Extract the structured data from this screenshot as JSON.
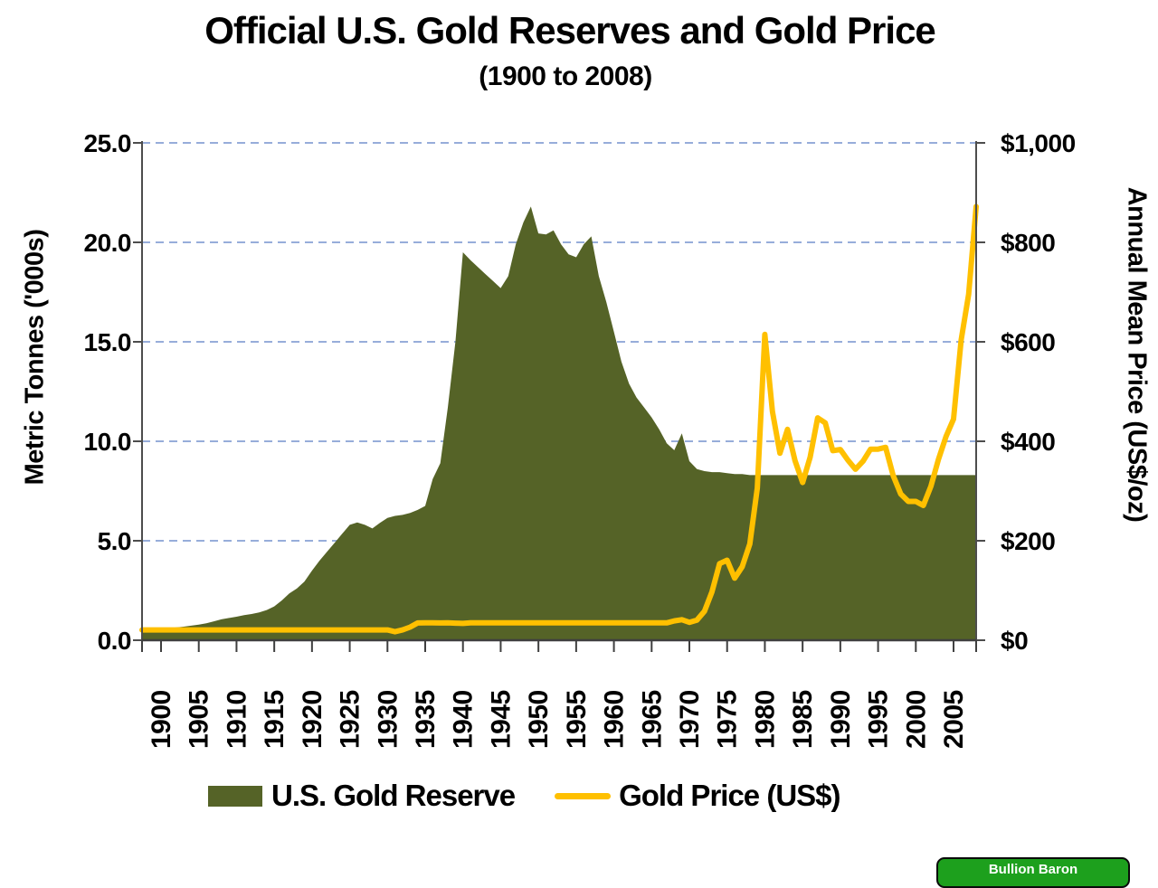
{
  "title": "Official U.S. Gold Reserves and Gold Price",
  "subtitle": "(1900 to 2008)",
  "left_axis": {
    "label": "Metric Tonnes ('000s)",
    "ticks": [
      "25.0",
      "20.0",
      "15.0",
      "10.0",
      "5.0",
      "0.0"
    ],
    "min": 0,
    "max": 25
  },
  "right_axis": {
    "label": "Annual Mean Price (US$/oz)",
    "ticks": [
      "$1,000",
      "$800",
      "$600",
      "$400",
      "$200",
      "$0"
    ],
    "min": 0,
    "max": 1000
  },
  "x_axis": {
    "tick_years": [
      1900,
      1905,
      1910,
      1915,
      1920,
      1925,
      1930,
      1935,
      1940,
      1945,
      1950,
      1955,
      1960,
      1965,
      1970,
      1975,
      1980,
      1985,
      1990,
      1995,
      2000,
      2005
    ]
  },
  "legend": {
    "items": [
      {
        "label": "U.S. Gold Reserve",
        "type": "area"
      },
      {
        "label": "Gold Price (US$)",
        "type": "line"
      }
    ]
  },
  "watermark": {
    "label": "Bullion Baron",
    "bg": "#1da01d"
  },
  "colors": {
    "area": "#556327",
    "line": "#ffc000",
    "gridline": "#92a9d9",
    "axis": "#4d4d4d",
    "text": "#000000"
  },
  "chart_data": {
    "type": "combo",
    "title": "Official U.S. Gold Reserves and Gold Price (1900 to 2008)",
    "grid": "horizontal-dashed-blue",
    "legend_position": "bottom",
    "left_ylabel": "Metric Tonnes ('000s)",
    "right_ylabel": "Annual Mean Price (US$/oz)",
    "left_ylim": [
      0,
      25
    ],
    "right_ylim": [
      0,
      1000
    ],
    "x": [
      1900,
      1901,
      1902,
      1903,
      1904,
      1905,
      1906,
      1907,
      1908,
      1909,
      1910,
      1911,
      1912,
      1913,
      1914,
      1915,
      1916,
      1917,
      1918,
      1919,
      1920,
      1921,
      1922,
      1923,
      1924,
      1925,
      1926,
      1927,
      1928,
      1929,
      1930,
      1931,
      1932,
      1933,
      1934,
      1935,
      1936,
      1937,
      1938,
      1939,
      1940,
      1941,
      1942,
      1943,
      1944,
      1945,
      1946,
      1947,
      1948,
      1949,
      1950,
      1951,
      1952,
      1953,
      1954,
      1955,
      1956,
      1957,
      1958,
      1959,
      1960,
      1961,
      1962,
      1963,
      1964,
      1965,
      1966,
      1967,
      1968,
      1969,
      1970,
      1971,
      1972,
      1973,
      1974,
      1975,
      1976,
      1977,
      1978,
      1979,
      1980,
      1981,
      1982,
      1983,
      1984,
      1985,
      1986,
      1987,
      1988,
      1989,
      1990,
      1991,
      1992,
      1993,
      1994,
      1995,
      1996,
      1997,
      1998,
      1999,
      2000,
      2001,
      2002,
      2003,
      2004,
      2005,
      2006,
      2007,
      2008
    ],
    "series": [
      {
        "name": "U.S. Gold Reserve",
        "type": "area",
        "axis": "left",
        "unit": "thousand metric tonnes",
        "color": "#556327",
        "values": [
          0.55,
          0.6,
          0.64,
          0.68,
          0.73,
          0.78,
          0.85,
          0.95,
          1.05,
          1.12,
          1.18,
          1.26,
          1.32,
          1.4,
          1.52,
          1.7,
          2.0,
          2.35,
          2.6,
          2.95,
          3.5,
          4.0,
          4.45,
          4.9,
          5.35,
          5.8,
          5.92,
          5.8,
          5.62,
          5.9,
          6.15,
          6.25,
          6.3,
          6.4,
          6.55,
          6.75,
          8.1,
          8.9,
          11.7,
          15.0,
          19.5,
          19.1,
          18.75,
          18.4,
          18.05,
          17.7,
          18.3,
          19.9,
          21.0,
          21.8,
          20.45,
          20.4,
          20.6,
          19.9,
          19.4,
          19.25,
          19.9,
          20.3,
          18.3,
          17.0,
          15.5,
          14.0,
          12.9,
          12.2,
          11.7,
          11.2,
          10.6,
          9.9,
          9.55,
          10.4,
          9.0,
          8.6,
          8.5,
          8.45,
          8.45,
          8.4,
          8.35,
          8.35,
          8.3,
          8.3,
          8.3,
          8.3,
          8.3,
          8.3,
          8.3,
          8.3,
          8.3,
          8.3,
          8.3,
          8.3,
          8.3,
          8.3,
          8.3,
          8.3,
          8.3,
          8.3,
          8.3,
          8.3,
          8.3,
          8.3,
          8.3,
          8.3,
          8.3,
          8.3,
          8.3,
          8.3,
          8.3,
          8.3,
          8.3
        ]
      },
      {
        "name": "Gold Price (US$)",
        "type": "line",
        "axis": "right",
        "unit": "US$/oz",
        "color": "#ffc000",
        "values": [
          20.67,
          20.67,
          20.67,
          20.67,
          20.67,
          20.67,
          20.67,
          20.67,
          20.67,
          20.67,
          20.67,
          20.67,
          20.67,
          20.67,
          20.67,
          20.67,
          20.67,
          20.67,
          20.67,
          20.67,
          20.67,
          20.67,
          20.67,
          20.67,
          20.67,
          20.67,
          20.67,
          20.67,
          20.67,
          20.67,
          20.67,
          17.06,
          20.67,
          26.33,
          34.69,
          34.84,
          34.87,
          34.79,
          34.85,
          34.42,
          33.85,
          35,
          35,
          35,
          35,
          35,
          35,
          35,
          35,
          35,
          35,
          35,
          35,
          35,
          35,
          35,
          35,
          35,
          35,
          35,
          35,
          35,
          35,
          35,
          35,
          35,
          35,
          35,
          38.9,
          41.28,
          36.02,
          40.62,
          58.42,
          97.39,
          154.0,
          160.86,
          124.74,
          147.84,
          193.4,
          306.0,
          615.0,
          460.0,
          376.0,
          424.0,
          361.0,
          317.0,
          368.0,
          447.0,
          437.0,
          381.0,
          383.5,
          362.1,
          343.8,
          359.8,
          384.0,
          384.2,
          387.8,
          331.0,
          294.2,
          279.0,
          279.1,
          271.0,
          309.7,
          363.4,
          409.7,
          444.7,
          603.5,
          695.4,
          871.96
        ]
      }
    ]
  }
}
